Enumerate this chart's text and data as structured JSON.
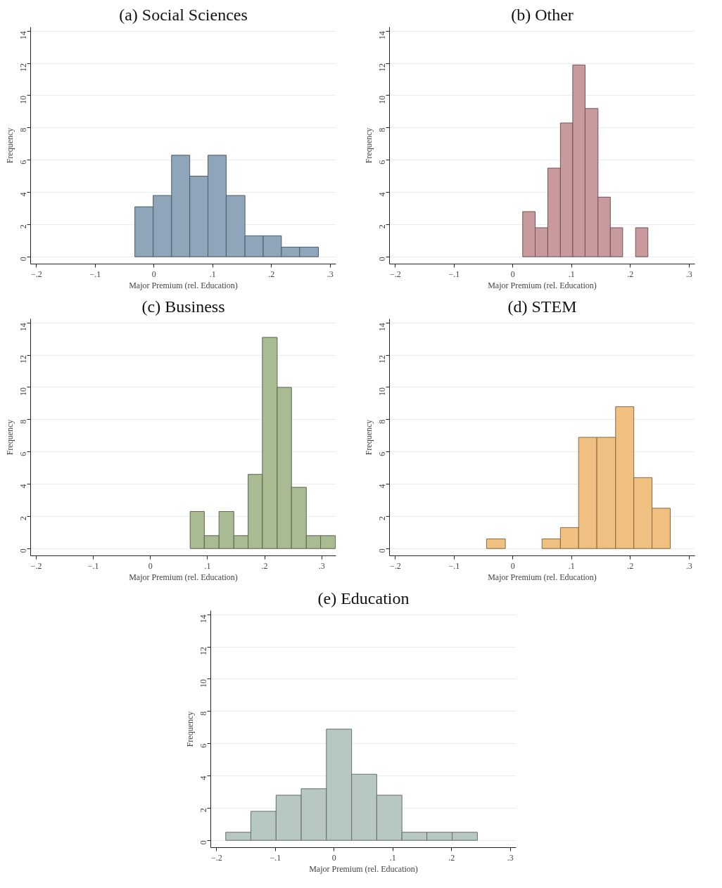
{
  "chart_data": [
    {
      "type": "histogram",
      "title": "(a) Social Sciences",
      "xlabel": "Major Premium (rel. Education)",
      "ylabel": "Frequency",
      "color": "#8ea5ba",
      "grid": "y",
      "xlim": [
        -0.21,
        0.31
      ],
      "ylim": [
        -0.45,
        14.25
      ],
      "xticks": [
        {
          "value": -0.2,
          "label": "−.2"
        },
        {
          "value": -0.1,
          "label": "−.1"
        },
        0,
        {
          "value": 0.1,
          "label": ".1"
        },
        {
          "value": 0.2,
          "label": ".2"
        },
        {
          "value": 0.3,
          "label": ".3"
        }
      ],
      "yticks": [
        0,
        2,
        4,
        6,
        8,
        10,
        12,
        14
      ],
      "bins": [
        -0.0325,
        -0.0013,
        0.03,
        0.061,
        0.092,
        0.123,
        0.155,
        0.186,
        0.217,
        0.248,
        0.28
      ],
      "values": [
        3.1,
        3.8,
        6.3,
        5.0,
        6.3,
        3.8,
        1.3,
        1.3,
        0.6,
        0.6
      ]
    },
    {
      "type": "histogram",
      "title": "(b) Other",
      "xlabel": "Major Premium (rel. Education)",
      "ylabel": "Frequency",
      "color": "#c89a9e",
      "grid": "y",
      "xlim": [
        -0.21,
        0.31
      ],
      "ylim": [
        -0.45,
        14.25
      ],
      "xticks": [
        {
          "value": -0.2,
          "label": "−.2"
        },
        {
          "value": -0.1,
          "label": "−.1"
        },
        0,
        {
          "value": 0.1,
          "label": ".1"
        },
        {
          "value": 0.2,
          "label": ".2"
        },
        {
          "value": 0.3,
          "label": ".3"
        }
      ],
      "yticks": [
        0,
        2,
        4,
        6,
        8,
        10,
        12,
        14
      ],
      "bins": [
        0.0168,
        0.038,
        0.0595,
        0.081,
        0.102,
        0.123,
        0.145,
        0.166,
        0.187,
        0.209,
        0.23
      ],
      "values": [
        2.8,
        1.8,
        5.5,
        8.3,
        11.9,
        9.2,
        3.7,
        1.8,
        0,
        1.8
      ]
    },
    {
      "type": "histogram",
      "title": "(c) Business",
      "xlabel": "Major Premium (rel. Education)",
      "ylabel": "Frequency",
      "color": "#a9bb93",
      "grid": "y",
      "xlim": [
        -0.21,
        0.325
      ],
      "ylim": [
        -0.45,
        14.25
      ],
      "xticks": [
        {
          "value": -0.2,
          "label": "−.2"
        },
        {
          "value": -0.1,
          "label": "−.1"
        },
        0,
        {
          "value": 0.1,
          "label": ".1"
        },
        {
          "value": 0.2,
          "label": ".2"
        },
        {
          "value": 0.3,
          "label": ".3"
        }
      ],
      "yticks": [
        0,
        2,
        4,
        6,
        8,
        10,
        12,
        14
      ],
      "bins": [
        0.0695,
        0.0943,
        0.12,
        0.146,
        0.171,
        0.196,
        0.222,
        0.247,
        0.273,
        0.298,
        0.324
      ],
      "values": [
        2.3,
        0.8,
        2.3,
        0.8,
        4.6,
        13.1,
        10.0,
        3.8,
        0.8,
        0.8
      ]
    },
    {
      "type": "histogram",
      "title": "(d) STEM",
      "xlabel": "Major Premium (rel. Education)",
      "ylabel": "Frequency",
      "color": "#f0c080",
      "grid": "y",
      "xlim": [
        -0.21,
        0.31
      ],
      "ylim": [
        -0.45,
        14.25
      ],
      "xticks": [
        {
          "value": -0.2,
          "label": "−.2"
        },
        {
          "value": -0.1,
          "label": "−.1"
        },
        0,
        {
          "value": 0.1,
          "label": ".1"
        },
        {
          "value": 0.2,
          "label": ".2"
        },
        {
          "value": 0.3,
          "label": ".3"
        }
      ],
      "yticks": [
        0,
        2,
        4,
        6,
        8,
        10,
        12,
        14
      ],
      "bins": [
        -0.0448,
        -0.0128,
        0.0497,
        0.081,
        0.112,
        0.143,
        0.175,
        0.206,
        0.237,
        0.268
      ],
      "values": [
        0.6,
        0,
        0.6,
        1.3,
        6.9,
        6.9,
        8.8,
        4.4,
        2.5
      ]
    },
    {
      "type": "histogram",
      "title": "(e) Education",
      "xlabel": "Major Premium (rel. Education)",
      "ylabel": "Frequency",
      "color": "#b7c8c0",
      "grid": "y",
      "xlim": [
        -0.21,
        0.31
      ],
      "ylim": [
        -0.45,
        14.25
      ],
      "xticks": [
        {
          "value": -0.2,
          "label": "−.2"
        },
        {
          "value": -0.1,
          "label": "−.1"
        },
        0,
        {
          "value": 0.1,
          "label": ".1"
        },
        {
          "value": 0.2,
          "label": ".2"
        },
        {
          "value": 0.3,
          "label": ".3"
        }
      ],
      "yticks": [
        0,
        2,
        4,
        6,
        8,
        10,
        12,
        14
      ],
      "bins": [
        -0.1845,
        -0.1417,
        -0.0988,
        -0.056,
        -0.0131,
        0.0298,
        0.0726,
        0.1155,
        0.158,
        0.201,
        0.244
      ],
      "values": [
        0.5,
        1.8,
        2.8,
        3.2,
        6.9,
        4.1,
        2.8,
        0.5,
        0.5,
        0.5
      ]
    }
  ]
}
